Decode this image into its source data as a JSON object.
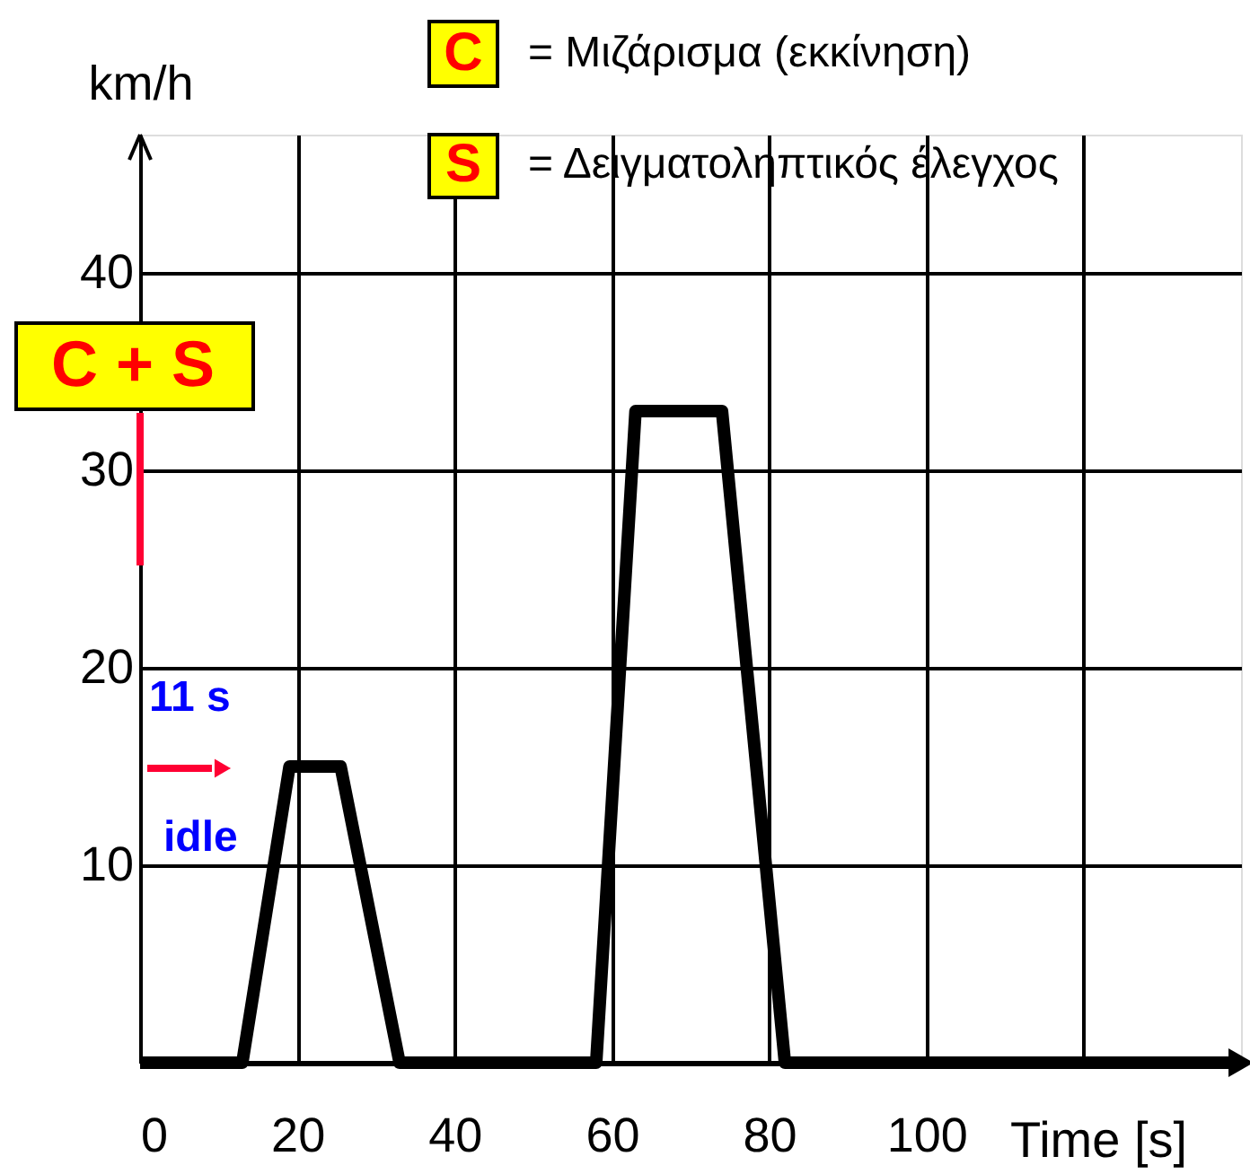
{
  "chart_data": {
    "type": "line",
    "x": [
      0,
      13,
      19,
      25.5,
      33,
      58,
      63,
      74,
      82,
      140
    ],
    "series": [
      {
        "color": "#000000",
        "values": [
          0,
          0,
          15,
          15,
          0,
          0,
          33,
          33,
          0,
          0
        ]
      }
    ],
    "xlim": [
      0,
      140
    ],
    "ylim": [
      0,
      47
    ],
    "xticks": [
      0,
      20,
      40,
      60,
      80,
      100,
      {
        "value": 120,
        "label": null
      }
    ],
    "yticks": [
      {
        "value": 0,
        "label": null
      },
      10,
      20,
      30,
      40
    ],
    "xlabel": "Time [s]",
    "ylabel": "km/h",
    "grid": true,
    "annotations": [
      "C",
      "= Μιζάρισμα (εκκίνηση)",
      "S",
      "= Δειγματοληπτικός έλεγχος",
      "C + S",
      "11 s",
      "idle"
    ]
  }
}
